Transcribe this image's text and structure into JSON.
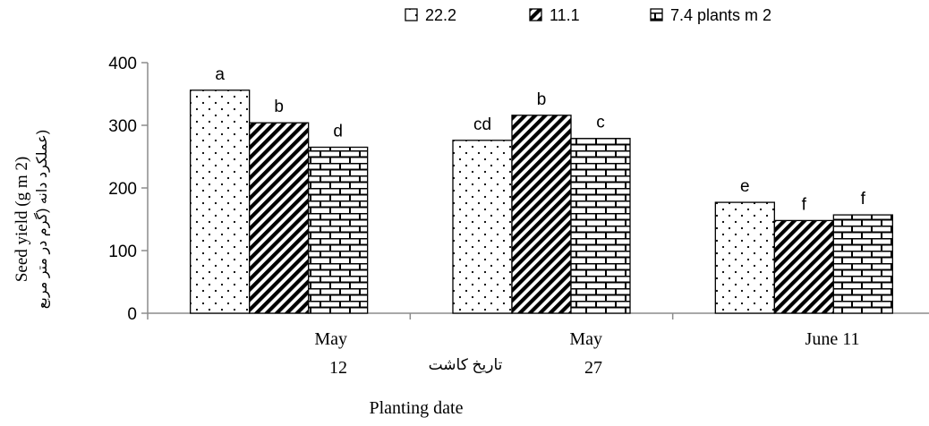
{
  "chart_data": {
    "type": "bar",
    "title": "",
    "xlabel": "Planting date",
    "xlabel_fa": "تاریخ کاشت",
    "ylabel": "Seed yield (g m 2)",
    "ylabel_fa": "(عملکرد دانه (گرم در متر مربع",
    "ylim": [
      0,
      400
    ],
    "yticks": [
      "0",
      "100",
      "200",
      "300",
      "400"
    ],
    "grid": false,
    "legend_position": "top",
    "categories": [
      {
        "line1": "May",
        "line2": "12"
      },
      {
        "line1": "May",
        "line2": "27"
      },
      {
        "line1": "June 11",
        "line2": ""
      }
    ],
    "series": [
      {
        "name": "22.2",
        "pattern": "dots",
        "values": [
          356,
          276,
          177
        ],
        "letters": [
          "a",
          "cd",
          "e"
        ]
      },
      {
        "name": "11.1",
        "pattern": "diagonal",
        "values": [
          304,
          316,
          148
        ],
        "letters": [
          "b",
          "b",
          "f"
        ]
      },
      {
        "name": "7.4 plants m 2",
        "pattern": "brick",
        "values": [
          265,
          279,
          157
        ],
        "letters": [
          "d",
          "c",
          "f"
        ]
      }
    ]
  }
}
